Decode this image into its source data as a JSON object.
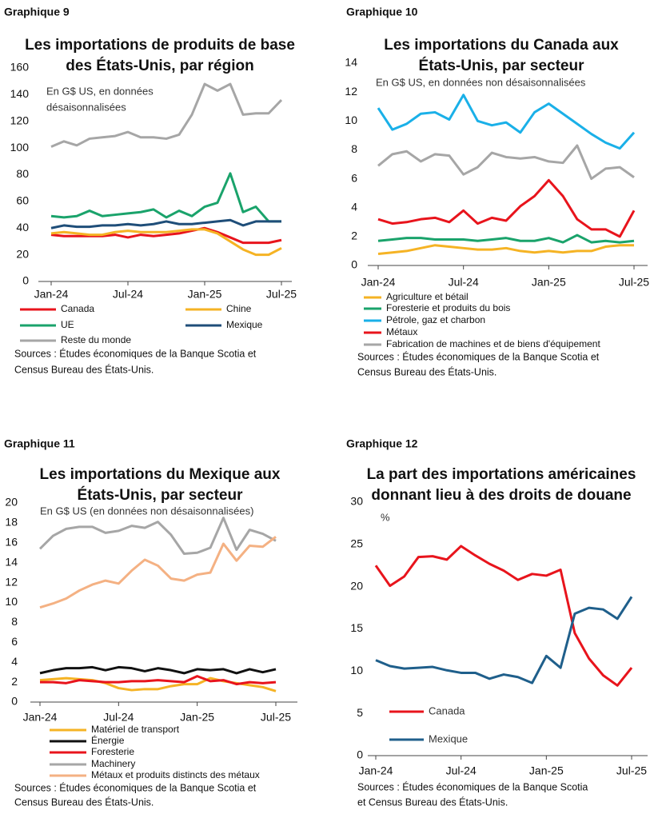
{
  "chart_data": [
    {
      "type": "line",
      "label": "Graphique 9",
      "title": [
        "Les importations de produits de base",
        "des États-Unis, par région"
      ],
      "subtitle": [
        "En G$ US, en données",
        "désaisonnalisées"
      ],
      "categories": [
        "Jan-24",
        null,
        null,
        null,
        null,
        null,
        "Jul-24",
        null,
        null,
        null,
        null,
        null,
        "Jan-25",
        null,
        null,
        null,
        null,
        null,
        "Jul-25"
      ],
      "ylim": [
        0,
        160
      ],
      "yticks": [
        0,
        20,
        40,
        60,
        80,
        100,
        120,
        140,
        160
      ],
      "series": [
        {
          "name": "Canada",
          "color": "#e8141c",
          "values": [
            35,
            34,
            34,
            34,
            34,
            35,
            33,
            35,
            34,
            35,
            36,
            38,
            40,
            37,
            33,
            29,
            29,
            29,
            31
          ]
        },
        {
          "name": "Chine",
          "color": "#f5b324",
          "values": [
            36,
            37,
            36,
            35,
            35,
            37,
            38,
            37,
            37,
            37,
            38,
            39,
            39,
            36,
            30,
            24,
            20,
            20,
            25
          ]
        },
        {
          "name": "UE",
          "color": "#1aa36b",
          "values": [
            49,
            48,
            49,
            53,
            49,
            50,
            51,
            52,
            54,
            48,
            53,
            49,
            56,
            59,
            81,
            52,
            56,
            45,
            45
          ]
        },
        {
          "name": "Mexique",
          "color": "#1f4e79",
          "values": [
            40,
            42,
            41,
            41,
            42,
            42,
            43,
            42,
            43,
            45,
            43,
            43,
            44,
            45,
            46,
            42,
            45,
            45,
            45
          ]
        },
        {
          "name": "Reste du monde",
          "color": "#a6a6a6",
          "values": [
            101,
            105,
            102,
            107,
            108,
            109,
            112,
            108,
            108,
            107,
            110,
            125,
            148,
            143,
            148,
            125,
            126,
            126,
            136
          ]
        }
      ],
      "sources": [
        "Sources : Études économiques de la Banque Scotia et",
        "Census Bureau des États-Unis."
      ]
    },
    {
      "type": "line",
      "label": "Graphique 10",
      "title": [
        "Les importations du Canada aux",
        "États-Unis, par secteur"
      ],
      "subtitle": [
        "En G$ US, en données non désaisonnalisées"
      ],
      "categories": [
        "Jan-24",
        null,
        null,
        null,
        null,
        null,
        "Jul-24",
        null,
        null,
        null,
        null,
        null,
        "Jan-25",
        null,
        null,
        null,
        null,
        null,
        "Jul-25"
      ],
      "ylim": [
        0,
        14
      ],
      "yticks": [
        0,
        2,
        4,
        6,
        8,
        10,
        12,
        14
      ],
      "series": [
        {
          "name": "Agriculture et bétail",
          "color": "#f5b324",
          "values": [
            0.8,
            0.9,
            1.0,
            1.2,
            1.4,
            1.3,
            1.2,
            1.1,
            1.1,
            1.2,
            1.0,
            0.9,
            1.0,
            0.9,
            1.0,
            1.0,
            1.3,
            1.4,
            1.4
          ]
        },
        {
          "name": "Foresterie et produits du bois",
          "color": "#1aa36b",
          "values": [
            1.7,
            1.8,
            1.9,
            1.9,
            1.8,
            1.8,
            1.8,
            1.7,
            1.8,
            1.9,
            1.7,
            1.7,
            1.9,
            1.6,
            2.1,
            1.6,
            1.7,
            1.6,
            1.7
          ]
        },
        {
          "name": "Pétrole, gaz et charbon",
          "color": "#1ab0e8",
          "values": [
            10.9,
            9.4,
            9.8,
            10.5,
            10.6,
            10.1,
            11.8,
            10.0,
            9.7,
            9.9,
            9.2,
            10.6,
            11.2,
            10.5,
            9.8,
            9.1,
            8.5,
            8.1,
            9.2
          ]
        },
        {
          "name": "Métaux",
          "color": "#e8141c",
          "values": [
            3.2,
            2.9,
            3.0,
            3.2,
            3.3,
            3.0,
            3.8,
            2.9,
            3.3,
            3.1,
            4.1,
            4.8,
            5.9,
            4.8,
            3.2,
            2.5,
            2.5,
            2.0,
            3.8
          ]
        },
        {
          "name": "Fabrication de machines et de biens d'équipement",
          "color": "#a6a6a6",
          "values": [
            6.9,
            7.7,
            7.9,
            7.2,
            7.7,
            7.6,
            6.3,
            6.8,
            7.8,
            7.5,
            7.4,
            7.5,
            7.2,
            7.1,
            8.3,
            6.0,
            6.7,
            6.8,
            6.1
          ]
        }
      ],
      "sources": [
        "Sources : Études économiques de la Banque Scotia et",
        "Census Bureau des États-Unis."
      ]
    },
    {
      "type": "line",
      "label": "Graphique 11",
      "title": [
        "Les importations du Mexique aux",
        "États-Unis, par secteur"
      ],
      "subtitle": [
        "En G$ US (en données non désaisonnalisées)"
      ],
      "categories": [
        "Jan-24",
        null,
        null,
        null,
        null,
        null,
        "Jul-24",
        null,
        null,
        null,
        null,
        null,
        "Jan-25",
        null,
        null,
        null,
        null,
        null,
        "Jul-25"
      ],
      "ylim": [
        0,
        20
      ],
      "yticks": [
        0,
        2,
        4,
        6,
        8,
        10,
        12,
        14,
        16,
        18,
        20
      ],
      "series": [
        {
          "name": "Matériel de transport",
          "color": "#f5b324",
          "values": [
            2.2,
            2.3,
            2.4,
            2.3,
            2.2,
            1.9,
            1.4,
            1.2,
            1.3,
            1.3,
            1.6,
            1.8,
            1.8,
            2.4,
            2.1,
            1.9,
            1.7,
            1.5,
            1.1
          ]
        },
        {
          "name": "Énergie",
          "color": "#111111",
          "values": [
            2.9,
            3.2,
            3.4,
            3.4,
            3.5,
            3.2,
            3.5,
            3.4,
            3.1,
            3.4,
            3.2,
            2.9,
            3.3,
            3.2,
            3.3,
            2.9,
            3.3,
            3.0,
            3.3
          ]
        },
        {
          "name": "Foresterie",
          "color": "#e8141c",
          "values": [
            2.0,
            2.0,
            1.9,
            2.2,
            2.1,
            2.0,
            2.0,
            2.1,
            2.1,
            2.2,
            2.1,
            2.0,
            2.6,
            2.1,
            2.2,
            1.8,
            2.0,
            1.9,
            2.0
          ]
        },
        {
          "name": "Machinery",
          "color": "#a6a6a6",
          "values": [
            15.4,
            16.7,
            17.4,
            17.6,
            17.6,
            17.0,
            17.2,
            17.7,
            17.5,
            18.1,
            16.8,
            14.9,
            15.0,
            15.5,
            18.5,
            15.3,
            17.3,
            16.9,
            16.2
          ]
        },
        {
          "name": "Métaux et produits distincts des métaux",
          "color": "#f4b183",
          "values": [
            9.5,
            9.9,
            10.4,
            11.2,
            11.8,
            12.2,
            11.9,
            13.2,
            14.3,
            13.7,
            12.4,
            12.2,
            12.8,
            13.0,
            15.9,
            14.2,
            15.7,
            15.6,
            16.6
          ]
        }
      ],
      "sources": [
        "Sources : Études économiques de la Banque Scotia et",
        "Census Bureau des États-Unis."
      ]
    },
    {
      "type": "line",
      "label": "Graphique 12",
      "title": [
        "La part des importations américaines",
        "donnant lieu à des droits de douane"
      ],
      "ylabel": "%",
      "categories": [
        "Jan-24",
        null,
        null,
        null,
        null,
        null,
        "Jul-24",
        null,
        null,
        null,
        null,
        null,
        "Jan-25",
        null,
        null,
        null,
        null,
        null,
        "Jul-25"
      ],
      "ylim": [
        0,
        30
      ],
      "yticks": [
        0,
        5,
        10,
        15,
        20,
        25,
        30
      ],
      "series": [
        {
          "name": "Canada",
          "color": "#e8141c",
          "values": [
            22.5,
            20.1,
            21.2,
            23.5,
            23.6,
            23.2,
            24.8,
            23.7,
            22.7,
            21.9,
            20.8,
            21.5,
            21.3,
            22.0,
            14.5,
            11.5,
            9.5,
            8.3,
            10.4
          ]
        },
        {
          "name": "Mexique",
          "color": "#1f5f8b",
          "values": [
            11.3,
            10.6,
            10.3,
            10.4,
            10.5,
            10.1,
            9.8,
            9.8,
            9.1,
            9.6,
            9.3,
            8.6,
            11.8,
            10.4,
            16.8,
            17.5,
            17.3,
            16.2,
            18.8
          ]
        }
      ],
      "sources": [
        "Sources : Études économiques de la Banque Scotia",
        "et Census Bureau des États-Unis."
      ]
    }
  ]
}
